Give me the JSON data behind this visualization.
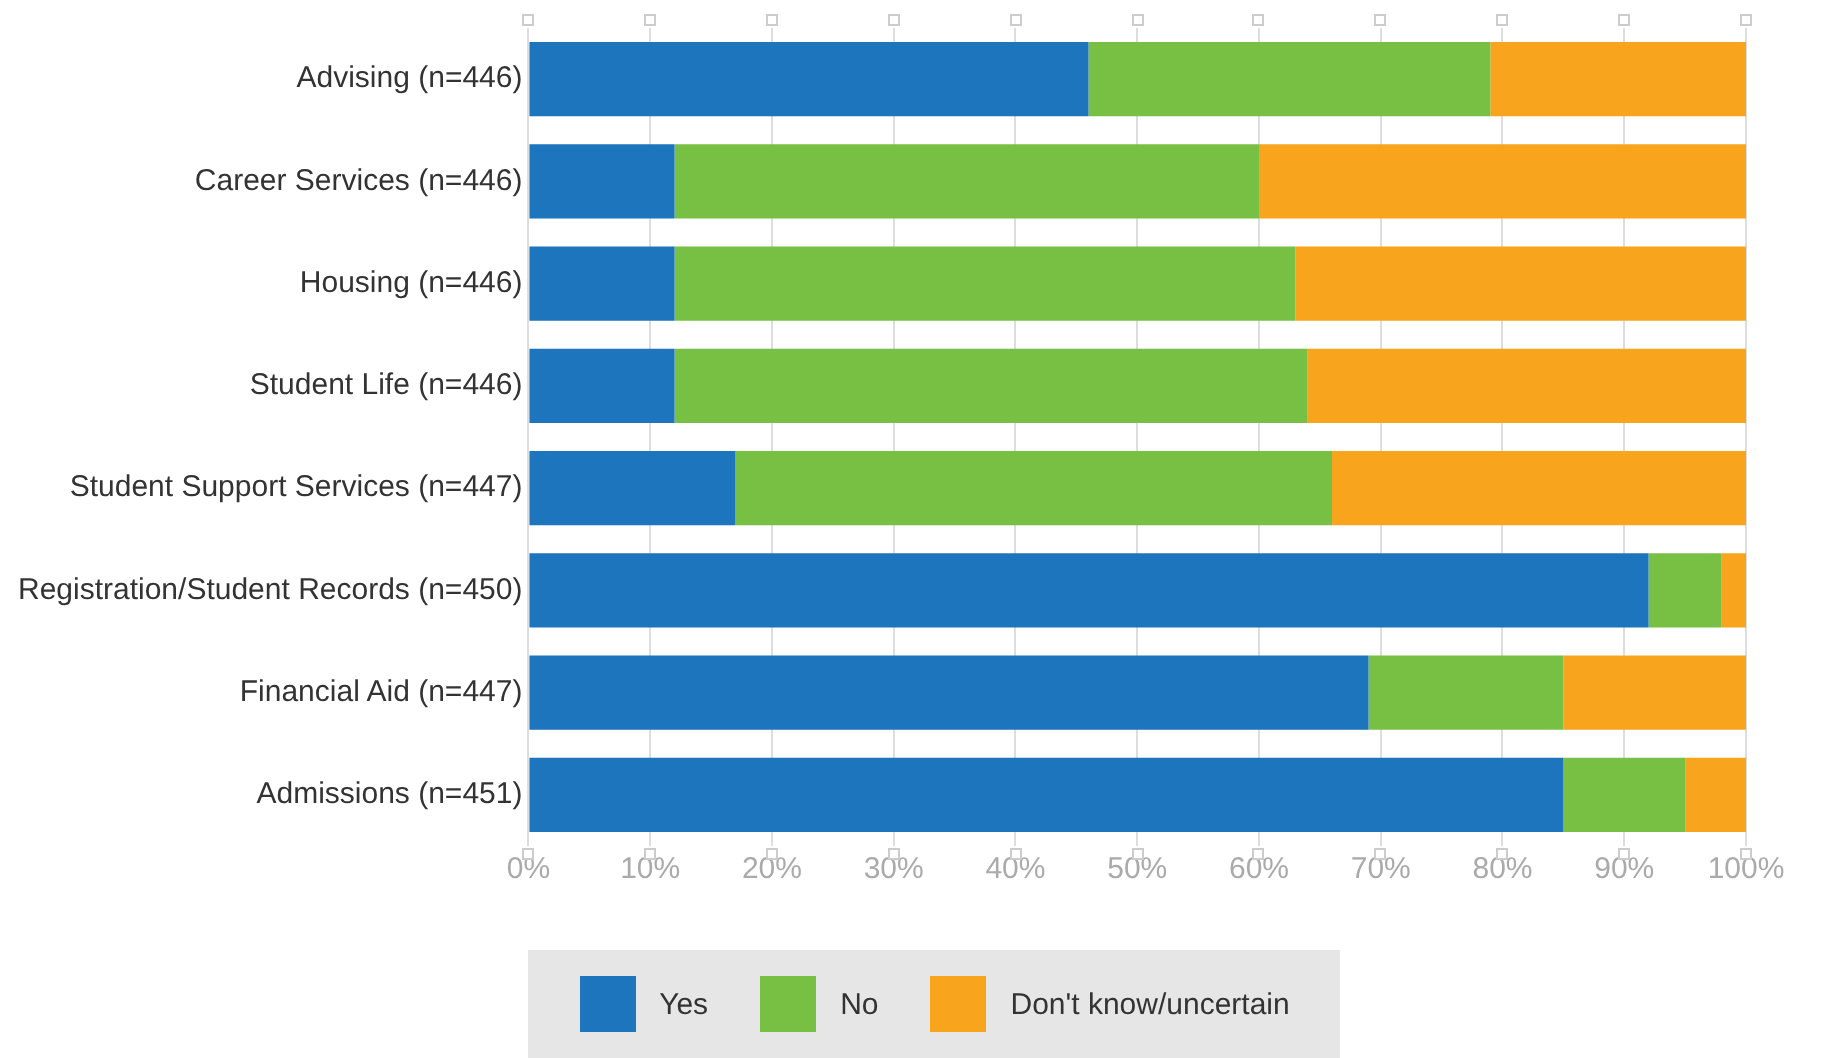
{
  "chart_data": {
    "type": "bar",
    "orientation": "horizontal",
    "stacked": true,
    "categories": [
      "Advising (n=446)",
      "Career Services (n=446)",
      "Housing (n=446)",
      "Student Life (n=446)",
      "Student Support Services (n=447)",
      "Registration/Student Records (n=450)",
      "Financial Aid (n=447)",
      "Admissions (n=451)"
    ],
    "series": [
      {
        "name": "Yes",
        "color": "#1d75bd",
        "values": [
          46,
          12,
          12,
          12,
          17,
          92,
          69,
          85
        ]
      },
      {
        "name": "No",
        "color": "#78c043",
        "values": [
          33,
          48,
          51,
          52,
          49,
          6,
          16,
          10
        ]
      },
      {
        "name": "Don't know/uncertain",
        "color": "#f8a51d",
        "values": [
          21,
          40,
          37,
          36,
          34,
          2,
          15,
          5
        ]
      }
    ],
    "xlim": [
      0,
      100
    ],
    "xticks": [
      {
        "value": 0,
        "label": "0%"
      },
      {
        "value": 10,
        "label": "10%"
      },
      {
        "value": 20,
        "label": "20%"
      },
      {
        "value": 30,
        "label": "30%"
      },
      {
        "value": 40,
        "label": "40%"
      },
      {
        "value": 50,
        "label": "50%"
      },
      {
        "value": 60,
        "label": "60%"
      },
      {
        "value": 70,
        "label": "70%"
      },
      {
        "value": 80,
        "label": "80%"
      },
      {
        "value": 90,
        "label": "90%"
      },
      {
        "value": 100,
        "label": "100%"
      }
    ],
    "grid": "x",
    "legend": "bottom"
  }
}
